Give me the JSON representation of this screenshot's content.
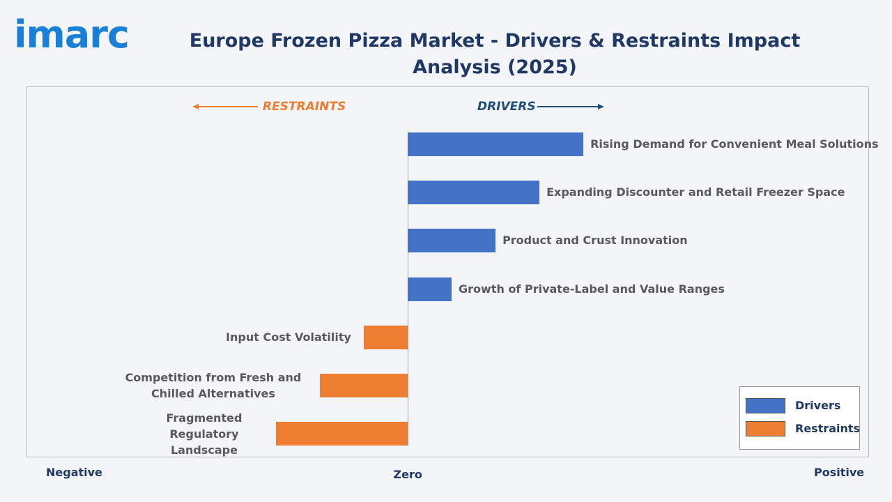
{
  "logo": "imarc",
  "chart_data": {
    "type": "bar",
    "orientation": "horizontal",
    "title": "Europe Frozen Pizza Market - Drivers & Restraints Impact Analysis (2025)",
    "restraints_header": "RESTRAINTS",
    "drivers_header": "DRIVERS",
    "axis_labels": {
      "negative": "Negative",
      "zero": "Zero",
      "positive": "Positive"
    },
    "categories": [
      "Rising Demand for Convenient Meal Solutions",
      "Expanding Discounter and Retail Freezer Space",
      "Product and Crust Innovation",
      "Growth of Private-Label and Value Ranges",
      "Input Cost Volatility",
      "Competition from Fresh and Chilled Alternatives",
      "Fragmented Regulatory Landscape"
    ],
    "series": [
      {
        "name": "Drivers",
        "color": "#4472c4",
        "values": [
          4,
          3,
          2,
          1,
          null,
          null,
          null
        ]
      },
      {
        "name": "Restraints",
        "color": "#ed7d31",
        "values": [
          null,
          null,
          null,
          null,
          -1,
          -2,
          -3
        ]
      }
    ],
    "xlim": [
      -8.68,
      10.52
    ],
    "legend": "lower-right"
  }
}
